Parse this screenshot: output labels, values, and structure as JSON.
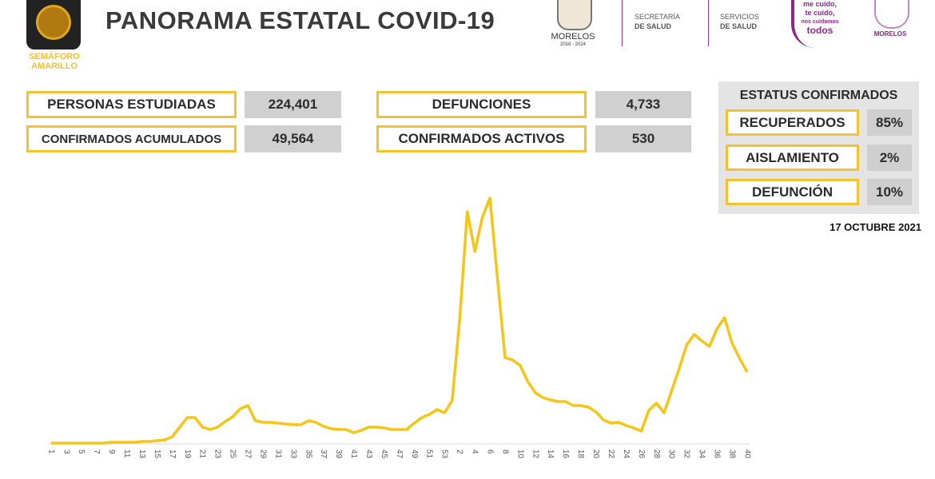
{
  "header": {
    "badge": [
      "SEMÁFORO",
      "AMARILLO"
    ],
    "title": "PANORAMA ESTATAL COVID-19",
    "logos": {
      "state": "MORELOS",
      "period": "2018 - 2024",
      "secretaria": [
        "SECRETARÍA",
        "DE SALUD"
      ],
      "servicios": [
        "SERVICIOS",
        "DE SALUD"
      ],
      "campaign": [
        "me cuido,",
        "te cuido,",
        "nos cuidamos",
        "todos"
      ],
      "government": "MORELOS"
    }
  },
  "stats": [
    {
      "label": "PERSONAS ESTUDIADAS",
      "value": "224,401"
    },
    {
      "label": "CONFIRMADOS ACUMULADOS",
      "value": "49,564"
    },
    {
      "label": "DEFUNCIONES",
      "value": "4,733"
    },
    {
      "label": "CONFIRMADOS ACTIVOS",
      "value": "530"
    }
  ],
  "status": {
    "title": "ESTATUS CONFIRMADOS",
    "rows": [
      {
        "label": "RECUPERADOS",
        "value": "85%"
      },
      {
        "label": "AISLAMIENTO",
        "value": "2%"
      },
      {
        "label": "DEFUNCIÓN",
        "value": "10%"
      }
    ]
  },
  "date": "17 OCTUBRE 2021",
  "chart_data": {
    "type": "line",
    "color": "#f5c518",
    "ylim": [
      0,
      320
    ],
    "categories": [
      "1",
      null,
      "3",
      null,
      "5",
      null,
      "7",
      null,
      "9",
      null,
      "11",
      null,
      "13",
      null,
      "15",
      null,
      "17",
      null,
      "19",
      null,
      "21",
      null,
      "23",
      null,
      "25",
      null,
      "27",
      null,
      "29",
      null,
      "31",
      null,
      "33",
      null,
      "35",
      null,
      "37",
      null,
      "39",
      null,
      "41",
      null,
      "43",
      null,
      "45",
      null,
      "47",
      null,
      "49",
      null,
      "51",
      null,
      "53",
      null,
      "2",
      null,
      "4",
      null,
      "6",
      null,
      "8",
      null,
      "10",
      null,
      "12",
      null,
      "14",
      null,
      "16",
      null,
      "18",
      null,
      "20",
      null,
      "22",
      null,
      "24",
      null,
      "26",
      null,
      "28",
      null,
      "30",
      null,
      "32",
      null,
      "34",
      null,
      "36",
      null,
      "38",
      null,
      "40"
    ],
    "values": [
      0,
      0,
      0,
      0,
      0,
      0,
      0,
      0,
      1,
      1,
      1,
      1,
      2,
      2,
      3,
      4,
      8,
      20,
      32,
      32,
      20,
      17,
      20,
      27,
      33,
      43,
      47,
      28,
      26,
      26,
      25,
      24,
      23,
      23,
      28,
      26,
      21,
      18,
      17,
      17,
      13,
      16,
      20,
      20,
      19,
      17,
      17,
      17,
      25,
      32,
      36,
      42,
      38,
      53,
      155,
      290,
      240,
      283,
      307,
      205,
      107,
      104,
      97,
      77,
      63,
      57,
      54,
      52,
      52,
      47,
      47,
      45,
      39,
      29,
      25,
      26,
      22,
      19,
      15,
      41,
      50,
      38,
      65,
      93,
      123,
      136,
      128,
      121,
      143,
      157,
      125,
      106,
      89
    ]
  }
}
